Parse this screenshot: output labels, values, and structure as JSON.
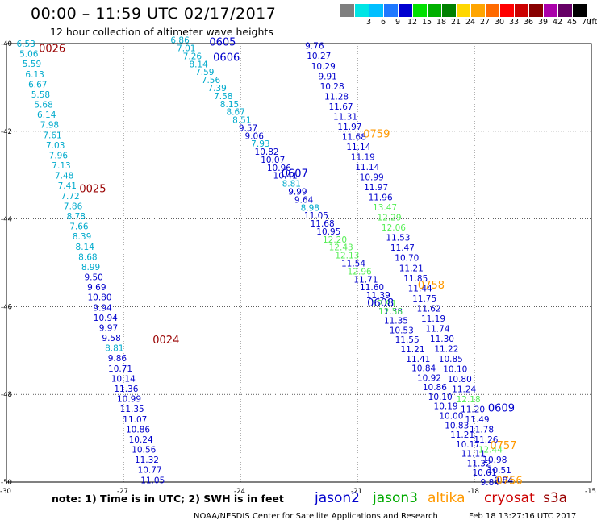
{
  "header": {
    "title": "00:00 – 11:59 UTC 02/17/2017",
    "subtitle": "12 hour collection of altimeter wave heights"
  },
  "legend": {
    "unit_label": "(ft)",
    "bins": [
      {
        "label": "",
        "color": "#7f7f7f"
      },
      {
        "label": "3",
        "color": "#00e5e5"
      },
      {
        "label": "6",
        "color": "#00bfff"
      },
      {
        "label": "9",
        "color": "#1e78ff"
      },
      {
        "label": "12",
        "color": "#0000d0"
      },
      {
        "label": "15",
        "color": "#00e000"
      },
      {
        "label": "18",
        "color": "#00b000"
      },
      {
        "label": "21",
        "color": "#008000"
      },
      {
        "label": "24",
        "color": "#ffd700"
      },
      {
        "label": "27",
        "color": "#ffa500"
      },
      {
        "label": "30",
        "color": "#ff6a00"
      },
      {
        "label": "33",
        "color": "#ff0000"
      },
      {
        "label": "36",
        "color": "#cc0000"
      },
      {
        "label": "39",
        "color": "#880000"
      },
      {
        "label": "42",
        "color": "#aa00aa"
      },
      {
        "label": "45",
        "color": "#660066"
      },
      {
        "label": "70",
        "color": "#000000"
      }
    ]
  },
  "colors": {
    "band_0_9": "#00aacc",
    "band_9_12": "#0000cc",
    "band_12_15": "#55ee55",
    "jason2": "#0000cc",
    "jason3": "#00aa00",
    "altika": "#ff9900",
    "cryosat": "#cc0000",
    "s3a": "#990000"
  },
  "axes": {
    "lat_ticks": [
      "-40",
      "-42",
      "-44",
      "-46",
      "-48",
      "-50"
    ],
    "lon_ticks": [
      "-30",
      "-27",
      "-24",
      "-21",
      "-18",
      "-15"
    ]
  },
  "passes": [
    {
      "label": "0026",
      "sat": "s3a",
      "lon": -29.17,
      "lat": -40.1
    },
    {
      "label": "0025",
      "sat": "s3a",
      "lon": -28.13,
      "lat": -43.3
    },
    {
      "label": "0024",
      "sat": "s3a",
      "lon": -26.25,
      "lat": -46.75
    },
    {
      "label": "0605",
      "sat": "jason2",
      "lon": -24.8,
      "lat": -39.95
    },
    {
      "label": "0606",
      "sat": "jason2",
      "lon": -24.7,
      "lat": -40.3
    },
    {
      "label": "0607",
      "sat": "jason2",
      "lon": -22.95,
      "lat": -42.95
    },
    {
      "label": "0608",
      "sat": "jason2",
      "lon": -20.75,
      "lat": -45.9
    },
    {
      "label": "0609",
      "sat": "jason2",
      "lon": -17.65,
      "lat": -48.3
    },
    {
      "label": "0759",
      "sat": "altika",
      "lon": -20.85,
      "lat": -42.05
    },
    {
      "label": "0758",
      "sat": "altika",
      "lon": -19.45,
      "lat": -45.5
    },
    {
      "label": "0757",
      "sat": "altika",
      "lon": -17.6,
      "lat": -49.15
    },
    {
      "label": "0756",
      "sat": "altika",
      "lon": -17.45,
      "lat": -49.95
    }
  ],
  "tracks": [
    {
      "name": "s3a-track",
      "lon0": -29.5,
      "lat0": -40.0,
      "lon1": -26.25,
      "lat1": -49.95,
      "values": [
        "6.53",
        "5.06",
        "5.59",
        "6.13",
        "6.67",
        "5.58",
        "5.68",
        "6.14",
        "7.98",
        "7.61",
        "7.03",
        "7.96",
        "7.13",
        "7.48",
        "7.41",
        "7.72",
        "7.86",
        "8.78",
        "7.66",
        "8.39",
        "8.14",
        "8.68",
        "8.99",
        "9.50",
        "9.69",
        "10.80",
        "9.94",
        "10.94",
        "9.97",
        "9.58",
        "8.81",
        "9.86",
        "10.71",
        "10.14",
        "11.36",
        "10.99",
        "11.35",
        "11.07",
        "10.86",
        "10.24",
        "10.56",
        "11.32",
        "10.77",
        "11.05"
      ]
    },
    {
      "name": "jason2-west-track",
      "lon0": -25.55,
      "lat0": -39.92,
      "lon1": -20.15,
      "lat1": -46.1,
      "values": [
        "6.86",
        "7.01",
        "7.26",
        "8.14",
        "7.59",
        "7.56",
        "7.39",
        "7.58",
        "8.15",
        "8.67",
        "8.51",
        "9.57",
        "9.06",
        "7.93",
        "10.82",
        "10.07",
        "10.96",
        "10.41",
        "8.81",
        "9.99",
        "9.64",
        "8.98",
        "11.05",
        "11.68",
        "10.95",
        "12.20",
        "12.43",
        "12.13",
        "11.54",
        "12.96",
        "11.71",
        "11.60",
        "11.39",
        "12.91",
        "11.38"
      ]
    },
    {
      "name": "altika-track",
      "lon0": -22.1,
      "lat0": -40.05,
      "lon1": -17.25,
      "lat1": -49.95,
      "values": [
        "9.76",
        "10.27",
        "10.29",
        "9.91",
        "10.28",
        "11.28",
        "11.67",
        "11.31",
        "11.97",
        "11.68",
        "11.14",
        "11.19",
        "11.14",
        "10.99",
        "11.97",
        "11.96",
        "13.47",
        "12.29",
        "12.06",
        "11.53",
        "11.47",
        "10.70",
        "11.21",
        "11.85",
        "11.44",
        "11.75",
        "11.62",
        "11.19",
        "11.74",
        "11.30",
        "11.22",
        "10.85",
        "10.10",
        "10.80",
        "11.24",
        "12.18",
        "11.20",
        "11.49",
        "11.78",
        "11.26",
        "12.44",
        "10.98",
        "10.51",
        "9.84"
      ]
    },
    {
      "name": "jason2-east-track",
      "lon0": -20.15,
      "lat0": -46.1,
      "lon1": -17.6,
      "lat1": -50.0,
      "values": [
        "12.56",
        "11.35",
        "10.53",
        "11.55",
        "11.21",
        "11.41",
        "10.84",
        "10.92",
        "10.86",
        "10.10",
        "10.19",
        "10.00",
        "10.83",
        "11.21",
        "10.17",
        "11.11",
        "11.32",
        "10.61",
        "9.84"
      ]
    }
  ],
  "footer": {
    "note": "note:  1) Time is in UTC;  2) SWH is in feet",
    "satellites": [
      {
        "name": "jason2",
        "color": "#0000cc"
      },
      {
        "name": "jason3",
        "color": "#00aa00"
      },
      {
        "name": "altika",
        "color": "#ff9900"
      },
      {
        "name": "cryosat",
        "color": "#cc0000"
      },
      {
        "name": "s3a",
        "color": "#990000"
      }
    ],
    "credit": "NOAA/NESDIS Center for Satellite Applications and Research",
    "timestamp": "Feb 18 13:27:16 UTC 2017"
  }
}
